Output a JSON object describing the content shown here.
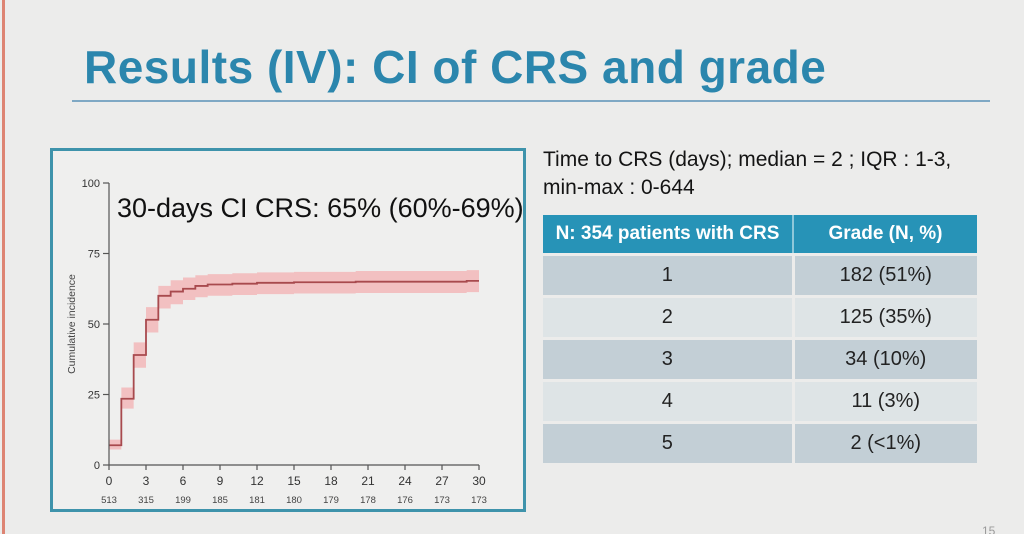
{
  "header": {
    "title": "Results (IV): CI of CRS and grade",
    "accent_color": "#2b86ad"
  },
  "right_panel": {
    "time_text_line1": "Time to CRS (days); median = 2 ; IQR : 1-3,",
    "time_text_line2": "min-max : 0-644",
    "table": {
      "headers": [
        "N: 354 patients with CRS",
        "Grade (N, %)"
      ],
      "rows": [
        [
          "1",
          "182 (51%)"
        ],
        [
          "2",
          "125 (35%)"
        ],
        [
          "3",
          "34 (10%)"
        ],
        [
          "4",
          "11 (3%)"
        ],
        [
          "5",
          "2 (<1%)"
        ]
      ],
      "header_bg": "#2793b7",
      "row_bg_dark": "#c3cfd6",
      "row_bg_light": "#dee4e6"
    }
  },
  "footer": {
    "page_number": "15"
  },
  "chart_data": {
    "type": "line",
    "subtype": "step-cumulative-incidence-with-confidence-band",
    "annotation": "30-days CI CRS: 65% (60%-69%)",
    "title": "",
    "xlabel": "",
    "ylabel": "Cumulative incidence",
    "xlim": [
      0,
      30
    ],
    "ylim": [
      0,
      100
    ],
    "grid": false,
    "x_ticks": [
      0,
      3,
      6,
      9,
      12,
      15,
      18,
      21,
      24,
      27,
      30
    ],
    "y_ticks": [
      0,
      25,
      50,
      75,
      100
    ],
    "at_risk_counts": [
      513,
      315,
      199,
      185,
      181,
      180,
      179,
      178,
      176,
      173,
      173
    ],
    "line_color": "#a84a4e",
    "band_color": "#f2c0c1",
    "border_color": "#3e93ab",
    "points": [
      {
        "x": 0,
        "y": 7,
        "lo": 5.5,
        "hi": 9
      },
      {
        "x": 1,
        "y": 23.5,
        "lo": 20,
        "hi": 27.5
      },
      {
        "x": 2,
        "y": 39,
        "lo": 34.5,
        "hi": 43.5
      },
      {
        "x": 3,
        "y": 51.5,
        "lo": 47,
        "hi": 56
      },
      {
        "x": 4,
        "y": 60,
        "lo": 55.5,
        "hi": 63.5
      },
      {
        "x": 5,
        "y": 61.5,
        "lo": 57,
        "hi": 65.5
      },
      {
        "x": 6,
        "y": 62.5,
        "lo": 58.5,
        "hi": 66.5
      },
      {
        "x": 7,
        "y": 63.5,
        "lo": 59.5,
        "hi": 67.3
      },
      {
        "x": 8,
        "y": 64,
        "lo": 60,
        "hi": 67.7
      },
      {
        "x": 10,
        "y": 64.3,
        "lo": 60.3,
        "hi": 68
      },
      {
        "x": 12,
        "y": 64.6,
        "lo": 60.6,
        "hi": 68.3
      },
      {
        "x": 15,
        "y": 64.8,
        "lo": 60.8,
        "hi": 68.5
      },
      {
        "x": 20,
        "y": 65,
        "lo": 61,
        "hi": 68.8
      },
      {
        "x": 29,
        "y": 65.3,
        "lo": 61.3,
        "hi": 69.1
      }
    ]
  }
}
